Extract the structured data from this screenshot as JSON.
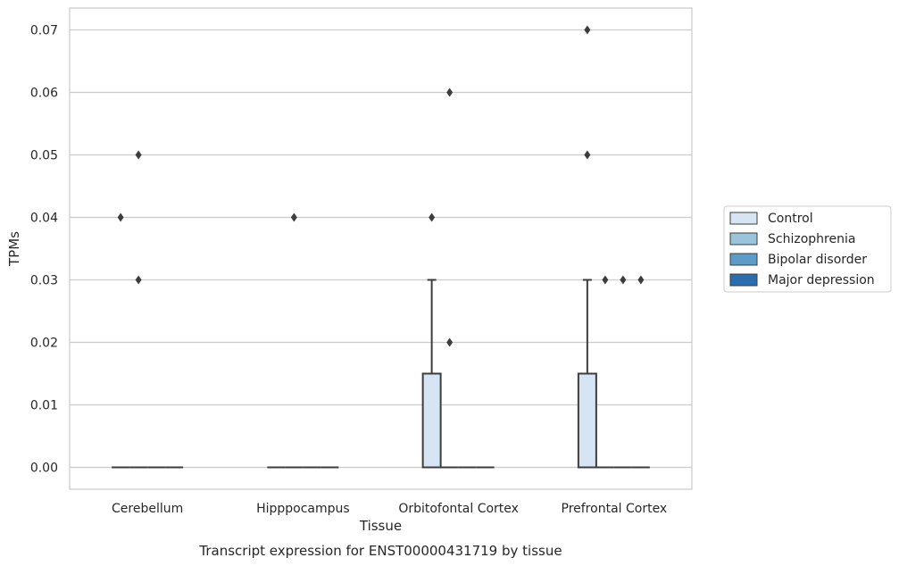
{
  "chart_data": {
    "type": "box",
    "title": "Transcript expression for ENST00000431719 by tissue",
    "xlabel": "Tissue",
    "ylabel": "TPMs",
    "ylim": [
      -0.0035,
      0.0735
    ],
    "yticks": [
      "0.00",
      "0.01",
      "0.02",
      "0.03",
      "0.04",
      "0.05",
      "0.06",
      "0.07"
    ],
    "ytick_values": [
      0,
      0.01,
      0.02,
      0.03,
      0.04,
      0.05,
      0.06,
      0.07
    ],
    "grid": true,
    "legend_position": "right",
    "categories": [
      "Cerebellum",
      "Hipppocampus",
      "Orbitofontal Cortex",
      "Prefrontal Cortex"
    ],
    "series": [
      {
        "name": "Control",
        "color": "#d6e5f3",
        "boxes": [
          {
            "q1": 0,
            "median": 0,
            "q3": 0,
            "whislo": 0,
            "whishi": 0,
            "outliers": [
              0.04
            ]
          },
          {
            "q1": 0,
            "median": 0,
            "q3": 0,
            "whislo": 0,
            "whishi": 0,
            "outliers": []
          },
          {
            "q1": 0,
            "median": 0,
            "q3": 0.015,
            "whislo": 0,
            "whishi": 0.03,
            "outliers": [
              0.04
            ]
          },
          {
            "q1": 0,
            "median": 0,
            "q3": 0.015,
            "whislo": 0,
            "whishi": 0.03,
            "outliers": [
              0.05,
              0.07
            ]
          }
        ]
      },
      {
        "name": "Schizophrenia",
        "color": "#9ac3dc",
        "boxes": [
          {
            "q1": 0,
            "median": 0,
            "q3": 0,
            "whislo": 0,
            "whishi": 0,
            "outliers": [
              0.03,
              0.05
            ]
          },
          {
            "q1": 0,
            "median": 0,
            "q3": 0,
            "whislo": 0,
            "whishi": 0,
            "outliers": [
              0.04
            ]
          },
          {
            "q1": 0,
            "median": 0,
            "q3": 0,
            "whislo": 0,
            "whishi": 0,
            "outliers": [
              0.02,
              0.06
            ]
          },
          {
            "q1": 0,
            "median": 0,
            "q3": 0,
            "whislo": 0,
            "whishi": 0,
            "outliers": [
              0.03
            ]
          }
        ]
      },
      {
        "name": "Bipolar disorder",
        "color": "#5b9cc9",
        "boxes": [
          {
            "q1": 0,
            "median": 0,
            "q3": 0,
            "whislo": 0,
            "whishi": 0,
            "outliers": []
          },
          {
            "q1": 0,
            "median": 0,
            "q3": 0,
            "whislo": 0,
            "whishi": 0,
            "outliers": []
          },
          {
            "q1": 0,
            "median": 0,
            "q3": 0,
            "whislo": 0,
            "whishi": 0,
            "outliers": []
          },
          {
            "q1": 0,
            "median": 0,
            "q3": 0,
            "whislo": 0,
            "whishi": 0,
            "outliers": [
              0.03
            ]
          }
        ]
      },
      {
        "name": "Major depression",
        "color": "#2a6eae",
        "boxes": [
          {
            "q1": 0,
            "median": 0,
            "q3": 0,
            "whislo": 0,
            "whishi": 0,
            "outliers": []
          },
          {
            "q1": 0,
            "median": 0,
            "q3": 0,
            "whislo": 0,
            "whishi": 0,
            "outliers": []
          },
          {
            "q1": 0,
            "median": 0,
            "q3": 0,
            "whislo": 0,
            "whishi": 0,
            "outliers": []
          },
          {
            "q1": 0,
            "median": 0,
            "q3": 0,
            "whislo": 0,
            "whishi": 0,
            "outliers": [
              0.03
            ]
          }
        ]
      }
    ]
  }
}
